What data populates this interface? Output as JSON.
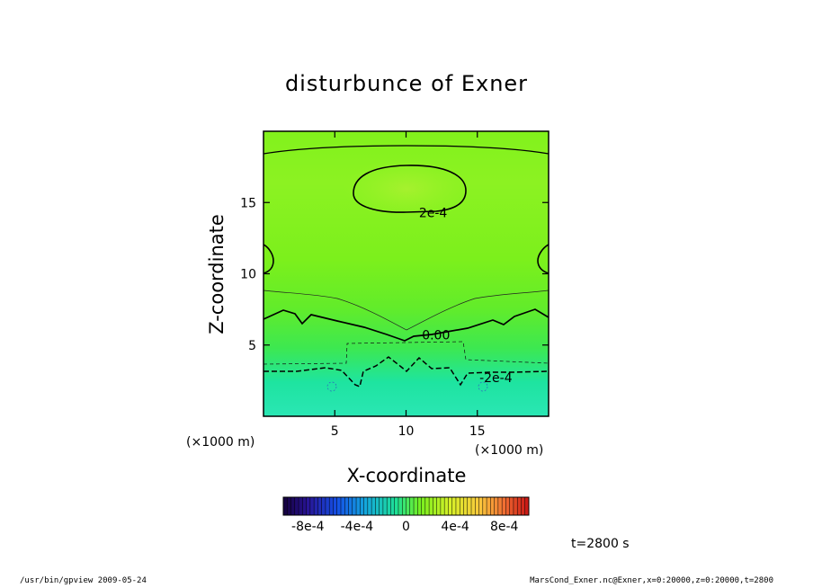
{
  "chart_data": {
    "type": "heatmap",
    "title": "disturbunce of Exner",
    "xlabel": "X-coordinate",
    "ylabel": "Z-coordinate",
    "x_unit": "(×1000 m)",
    "y_unit": "(×1000 m)",
    "xlim": [
      0,
      20
    ],
    "ylim": [
      0,
      20
    ],
    "x_ticks": [
      5,
      10,
      15
    ],
    "y_ticks": [
      5,
      10,
      15
    ],
    "contour_labels": [
      {
        "text": "2e-4",
        "x": 11.9,
        "y": 14.3
      },
      {
        "text": "0.00",
        "x": 12.1,
        "y": 5.7
      },
      {
        "text": "-2e-4",
        "x": 16.3,
        "y": 2.7
      }
    ],
    "colorbar": {
      "range": [
        -0.001,
        0.001
      ],
      "tick_labels": [
        "-8e-4",
        "-4e-4",
        "0",
        "4e-4",
        "8e-4"
      ],
      "tick_values": [
        -0.0008,
        -0.0004,
        0,
        0.0004,
        0.0008
      ]
    },
    "time_label": "t=2800 s"
  },
  "footer": {
    "left": "/usr/bin/gpview   2009-05-24",
    "right": "MarsCond_Exner.nc@Exner,x=0:20000,z=0:20000,t=2800"
  }
}
